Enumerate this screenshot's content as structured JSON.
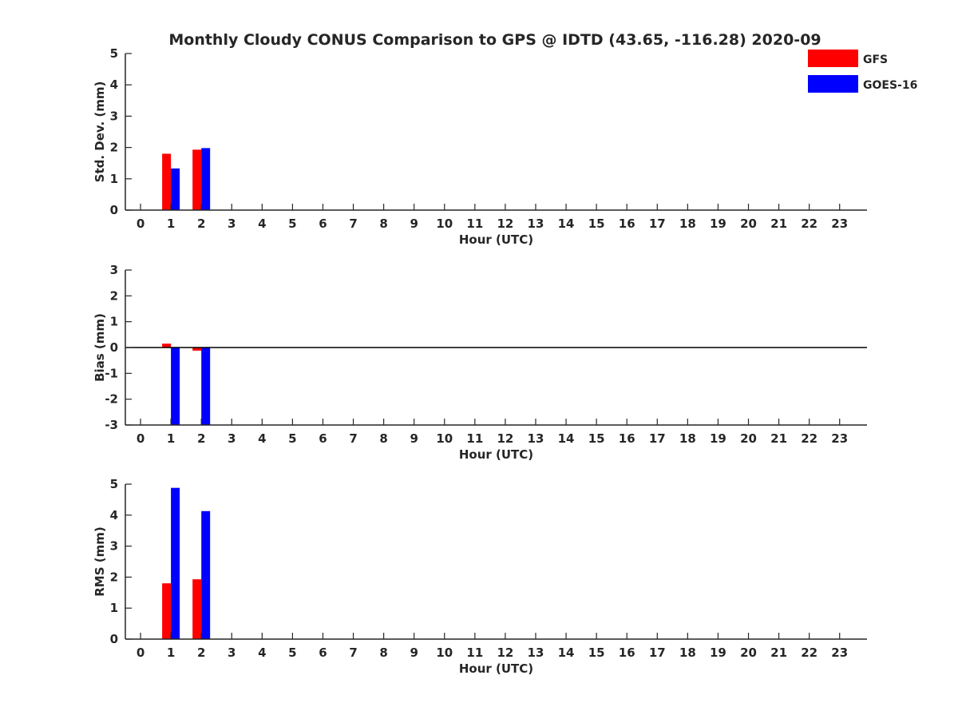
{
  "title": "Monthly Cloudy CONUS Comparison to GPS @ IDTD (43.65, -116.28) 2020-09",
  "legend": {
    "placement": "top-right",
    "entries": [
      {
        "label": "GFS",
        "color": "#ff0000"
      },
      {
        "label": "GOES-16",
        "color": "#0000ff"
      }
    ]
  },
  "chart_data": [
    {
      "type": "bar",
      "xlabel": "Hour (UTC)",
      "ylabel": "Std. Dev. (mm)",
      "x_ticks": [
        "0",
        "1",
        "2",
        "3",
        "4",
        "5",
        "6",
        "7",
        "8",
        "9",
        "10",
        "11",
        "12",
        "13",
        "14",
        "15",
        "16",
        "17",
        "18",
        "19",
        "20",
        "21",
        "22",
        "23"
      ],
      "xlim": [
        -0.5,
        23.9
      ],
      "ylim": [
        0,
        5
      ],
      "y_ticks": [
        "0",
        "1",
        "2",
        "3",
        "4",
        "5"
      ],
      "zero_line": false,
      "series": [
        {
          "name": "GFS",
          "color": "#ff0000",
          "points": [
            {
              "x": 1,
              "y": 1.8
            },
            {
              "x": 2,
              "y": 1.93
            }
          ]
        },
        {
          "name": "GOES-16",
          "color": "#0000ff",
          "points": [
            {
              "x": 1,
              "y": 1.33
            },
            {
              "x": 2,
              "y": 1.98
            }
          ]
        }
      ]
    },
    {
      "type": "bar",
      "xlabel": "Hour (UTC)",
      "ylabel": "Bias (mm)",
      "x_ticks": [
        "0",
        "1",
        "2",
        "3",
        "4",
        "5",
        "6",
        "7",
        "8",
        "9",
        "10",
        "11",
        "12",
        "13",
        "14",
        "15",
        "16",
        "17",
        "18",
        "19",
        "20",
        "21",
        "22",
        "23"
      ],
      "xlim": [
        -0.5,
        23.9
      ],
      "ylim": [
        -3,
        3
      ],
      "y_ticks": [
        "-3",
        "-2",
        "-1",
        "0",
        "1",
        "2",
        "3"
      ],
      "zero_line": true,
      "series": [
        {
          "name": "GFS",
          "color": "#ff0000",
          "points": [
            {
              "x": 1,
              "y": 0.15
            },
            {
              "x": 2,
              "y": -0.12
            }
          ]
        },
        {
          "name": "GOES-16",
          "color": "#0000ff",
          "points": [
            {
              "x": 1,
              "y": -3.0
            },
            {
              "x": 2,
              "y": -3.0
            }
          ]
        }
      ]
    },
    {
      "type": "bar",
      "xlabel": "Hour (UTC)",
      "ylabel": "RMS (mm)",
      "x_ticks": [
        "0",
        "1",
        "2",
        "3",
        "4",
        "5",
        "6",
        "7",
        "8",
        "9",
        "10",
        "11",
        "12",
        "13",
        "14",
        "15",
        "16",
        "17",
        "18",
        "19",
        "20",
        "21",
        "22",
        "23"
      ],
      "xlim": [
        -0.5,
        23.9
      ],
      "ylim": [
        0,
        5
      ],
      "y_ticks": [
        "0",
        "1",
        "2",
        "3",
        "4",
        "5"
      ],
      "zero_line": false,
      "series": [
        {
          "name": "GFS",
          "color": "#ff0000",
          "points": [
            {
              "x": 1,
              "y": 1.8
            },
            {
              "x": 2,
              "y": 1.93
            }
          ]
        },
        {
          "name": "GOES-16",
          "color": "#0000ff",
          "points": [
            {
              "x": 1,
              "y": 4.88
            },
            {
              "x": 2,
              "y": 4.13
            }
          ]
        }
      ]
    }
  ]
}
